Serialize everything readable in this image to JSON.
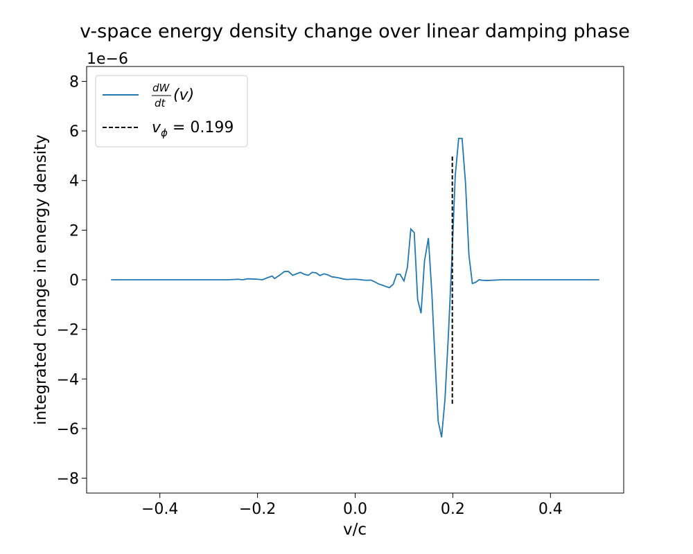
{
  "chart_data": {
    "type": "line",
    "title": "v-space energy density change over linear damping phase",
    "xlabel": "v/c",
    "ylabel": "integrated change in energy density",
    "y_offset_label": "1e−6",
    "y_scale": 1e-06,
    "xlim": [
      -0.55,
      0.55
    ],
    "ylim": [
      -8.6,
      8.6
    ],
    "grid": false,
    "legend_position": "top-left",
    "x_ticks": [
      -0.4,
      -0.2,
      0.0,
      0.2,
      0.4
    ],
    "x_tick_labels": [
      "−0.4",
      "−0.2",
      "0.0",
      "0.2",
      "0.4"
    ],
    "y_ticks": [
      -8,
      -6,
      -4,
      -2,
      0,
      2,
      4,
      6,
      8
    ],
    "y_tick_labels": [
      "−8",
      "−6",
      "−4",
      "−2",
      "0",
      "2",
      "4",
      "6",
      "8"
    ],
    "series": [
      {
        "name": "dW/dt(v)",
        "legend_main": "dW",
        "legend_den": "dt",
        "legend_tail": "(v)",
        "color": "#1f77b4",
        "style": "solid",
        "points": [
          [
            -0.5,
            0.0
          ],
          [
            -0.3,
            0.0
          ],
          [
            -0.26,
            0.0
          ],
          [
            -0.25,
            0.01
          ],
          [
            -0.24,
            0.02
          ],
          [
            -0.23,
            0.0
          ],
          [
            -0.22,
            0.04
          ],
          [
            -0.21,
            0.03
          ],
          [
            -0.2,
            0.02
          ],
          [
            -0.19,
            0.0
          ],
          [
            -0.18,
            0.08
          ],
          [
            -0.17,
            0.15
          ],
          [
            -0.165,
            0.05
          ],
          [
            -0.155,
            0.18
          ],
          [
            -0.145,
            0.33
          ],
          [
            -0.137,
            0.34
          ],
          [
            -0.128,
            0.18
          ],
          [
            -0.12,
            0.24
          ],
          [
            -0.112,
            0.3
          ],
          [
            -0.104,
            0.22
          ],
          [
            -0.096,
            0.18
          ],
          [
            -0.088,
            0.3
          ],
          [
            -0.08,
            0.28
          ],
          [
            -0.072,
            0.17
          ],
          [
            -0.064,
            0.24
          ],
          [
            -0.056,
            0.2
          ],
          [
            -0.048,
            0.12
          ],
          [
            -0.04,
            0.1
          ],
          [
            -0.032,
            0.07
          ],
          [
            -0.024,
            0.03
          ],
          [
            -0.016,
            0.01
          ],
          [
            -0.008,
            0.02
          ],
          [
            0.0,
            0.02
          ],
          [
            0.008,
            0.01
          ],
          [
            0.016,
            -0.01
          ],
          [
            0.024,
            -0.02
          ],
          [
            0.032,
            -0.01
          ],
          [
            0.04,
            -0.08
          ],
          [
            0.048,
            -0.17
          ],
          [
            0.056,
            -0.22
          ],
          [
            0.064,
            -0.28
          ],
          [
            0.07,
            -0.32
          ],
          [
            0.078,
            -0.18
          ],
          [
            0.085,
            0.22
          ],
          [
            0.092,
            0.22
          ],
          [
            0.1,
            -0.05
          ],
          [
            0.107,
            0.5
          ],
          [
            0.114,
            2.05
          ],
          [
            0.121,
            1.9
          ],
          [
            0.128,
            -0.8
          ],
          [
            0.135,
            -1.35
          ],
          [
            0.142,
            0.75
          ],
          [
            0.15,
            1.68
          ],
          [
            0.157,
            -0.5
          ],
          [
            0.164,
            -3.4
          ],
          [
            0.17,
            -5.7
          ],
          [
            0.177,
            -6.35
          ],
          [
            0.184,
            -4.8
          ],
          [
            0.191,
            -2.2
          ],
          [
            0.198,
            0.8
          ],
          [
            0.205,
            4.2
          ],
          [
            0.212,
            5.7
          ],
          [
            0.219,
            5.7
          ],
          [
            0.226,
            3.9
          ],
          [
            0.233,
            1.0
          ],
          [
            0.24,
            -0.15
          ],
          [
            0.247,
            -0.1
          ],
          [
            0.254,
            0.0
          ],
          [
            0.261,
            -0.02
          ],
          [
            0.27,
            -0.03
          ],
          [
            0.3,
            0.0
          ],
          [
            0.5,
            0.0
          ]
        ]
      },
      {
        "name": "v_ϕ = 0.199",
        "legend_sym": "v",
        "legend_sub": "ϕ",
        "legend_rest": " = 0.199",
        "color": "#000000",
        "style": "dashed",
        "points": [
          [
            0.199,
            -5.0
          ],
          [
            0.199,
            5.0
          ]
        ]
      }
    ]
  }
}
